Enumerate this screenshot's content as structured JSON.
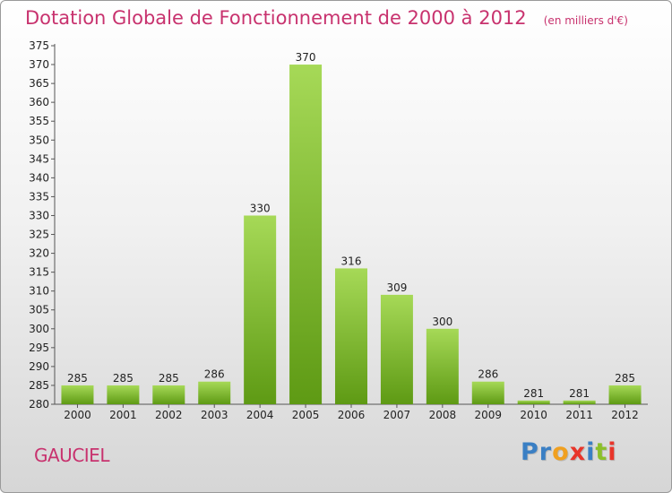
{
  "title": "Dotation Globale de Fonctionnement de 2000 à 2012",
  "unit_note": "(en milliers d'€)",
  "commune": "GAUCIEL",
  "logo": {
    "letters": [
      "P",
      "r",
      "o",
      "x",
      "i",
      "t",
      "i"
    ],
    "colors": [
      "#3a7fc4",
      "#3a7fc4",
      "#f0a020",
      "#e8352a",
      "#3a7fc4",
      "#8bbf2a",
      "#e8352a"
    ]
  },
  "colors": {
    "bar_light": "#a6d957",
    "bar_dark": "#5e9a14",
    "title": "#c8326e"
  },
  "chart_data": {
    "type": "bar",
    "title": "Dotation Globale de Fonctionnement de 2000 à 2012",
    "subtitle": "(en milliers d'€)",
    "categories": [
      "2000",
      "2001",
      "2002",
      "2003",
      "2004",
      "2005",
      "2006",
      "2007",
      "2008",
      "2009",
      "2010",
      "2011",
      "2012"
    ],
    "values": [
      285,
      285,
      285,
      286,
      330,
      370,
      316,
      309,
      300,
      286,
      281,
      281,
      285
    ],
    "xlabel": "",
    "ylabel": "",
    "ylim": [
      280,
      375
    ],
    "ytick_step": 5,
    "grid": false
  }
}
